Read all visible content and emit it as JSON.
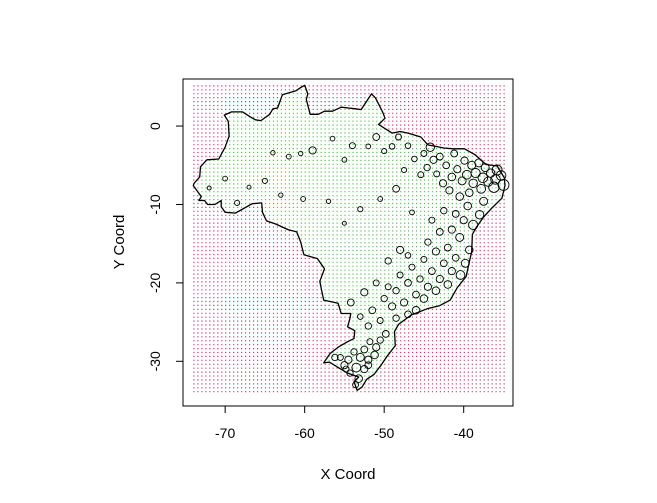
{
  "chart_data": {
    "type": "scatter",
    "title": "",
    "xlabel": "X Coord",
    "ylabel": "Y Coord",
    "xlim": [
      -75.3,
      -33.8
    ],
    "ylim": [
      -35.7,
      6.0
    ],
    "x_ticks": [
      -70,
      -60,
      -50,
      -40
    ],
    "y_ticks": [
      0,
      -10,
      -20,
      -30
    ],
    "x_tick_labels": [
      "-70",
      "-60",
      "-50",
      "-40"
    ],
    "y_tick_labels": [
      "0",
      "-10",
      "-20",
      "-30"
    ],
    "grid": false,
    "legend": "none",
    "colors": {
      "inside_grid": "#5cbf5c",
      "outside_grid": "#cc3d66",
      "boundary": "#000000",
      "points": "#000000"
    },
    "prediction_grid": {
      "x_range": [
        -74.0,
        -35.0
      ],
      "y_range": [
        -33.8,
        5.3
      ],
      "step": 0.5
    },
    "boundary": {
      "name": "Brazil",
      "lonlat": [
        [
          -73.9,
          -7.3
        ],
        [
          -73.2,
          -6.5
        ],
        [
          -73.1,
          -5.2
        ],
        [
          -72.3,
          -4.3
        ],
        [
          -70.8,
          -4.2
        ],
        [
          -70.0,
          -2.7
        ],
        [
          -69.5,
          -1.3
        ],
        [
          -69.6,
          0.6
        ],
        [
          -70.1,
          1.4
        ],
        [
          -69.2,
          1.8
        ],
        [
          -67.8,
          1.8
        ],
        [
          -66.9,
          1.2
        ],
        [
          -66.2,
          0.8
        ],
        [
          -65.5,
          0.7
        ],
        [
          -64.4,
          1.5
        ],
        [
          -64.0,
          2.2
        ],
        [
          -63.4,
          2.3
        ],
        [
          -62.8,
          4.0
        ],
        [
          -61.1,
          4.5
        ],
        [
          -60.5,
          4.9
        ],
        [
          -60.0,
          5.2
        ],
        [
          -59.6,
          4.1
        ],
        [
          -59.8,
          3.4
        ],
        [
          -59.3,
          1.5
        ],
        [
          -58.3,
          1.5
        ],
        [
          -57.5,
          1.9
        ],
        [
          -56.5,
          1.9
        ],
        [
          -55.4,
          2.4
        ],
        [
          -54.5,
          2.3
        ],
        [
          -53.6,
          2.2
        ],
        [
          -52.9,
          2.1
        ],
        [
          -51.6,
          4.1
        ],
        [
          -51.1,
          3.6
        ],
        [
          -50.2,
          1.8
        ],
        [
          -49.9,
          1.0
        ],
        [
          -50.7,
          0.2
        ],
        [
          -49.0,
          -0.9
        ],
        [
          -48.0,
          -0.7
        ],
        [
          -47.0,
          -0.9
        ],
        [
          -45.4,
          -1.4
        ],
        [
          -44.5,
          -2.4
        ],
        [
          -42.5,
          -2.8
        ],
        [
          -41.3,
          -2.9
        ],
        [
          -39.9,
          -2.9
        ],
        [
          -38.5,
          -3.7
        ],
        [
          -37.2,
          -4.9
        ],
        [
          -35.8,
          -5.1
        ],
        [
          -34.9,
          -6.6
        ],
        [
          -34.8,
          -7.6
        ],
        [
          -35.2,
          -9.2
        ],
        [
          -36.4,
          -10.4
        ],
        [
          -37.5,
          -11.6
        ],
        [
          -38.4,
          -12.9
        ],
        [
          -38.9,
          -13.8
        ],
        [
          -39.0,
          -16.0
        ],
        [
          -39.4,
          -17.8
        ],
        [
          -39.7,
          -19.2
        ],
        [
          -40.8,
          -20.6
        ],
        [
          -41.7,
          -22.2
        ],
        [
          -43.0,
          -22.9
        ],
        [
          -44.6,
          -23.3
        ],
        [
          -46.6,
          -24.1
        ],
        [
          -48.2,
          -25.3
        ],
        [
          -48.7,
          -26.2
        ],
        [
          -48.6,
          -28.0
        ],
        [
          -49.6,
          -29.3
        ],
        [
          -50.4,
          -30.5
        ],
        [
          -51.3,
          -31.7
        ],
        [
          -52.2,
          -32.3
        ],
        [
          -52.8,
          -33.3
        ],
        [
          -53.4,
          -33.7
        ],
        [
          -53.8,
          -32.6
        ],
        [
          -53.2,
          -32.0
        ],
        [
          -54.6,
          -31.5
        ],
        [
          -55.6,
          -30.9
        ],
        [
          -56.9,
          -30.1
        ],
        [
          -57.6,
          -30.2
        ],
        [
          -56.8,
          -29.0
        ],
        [
          -55.8,
          -28.2
        ],
        [
          -54.6,
          -27.5
        ],
        [
          -53.8,
          -27.1
        ],
        [
          -53.7,
          -26.1
        ],
        [
          -54.6,
          -25.6
        ],
        [
          -54.3,
          -24.5
        ],
        [
          -54.2,
          -23.9
        ],
        [
          -55.4,
          -23.9
        ],
        [
          -55.8,
          -22.6
        ],
        [
          -57.6,
          -22.2
        ],
        [
          -57.9,
          -20.8
        ],
        [
          -58.1,
          -19.8
        ],
        [
          -57.5,
          -18.2
        ],
        [
          -58.4,
          -16.9
        ],
        [
          -60.1,
          -16.4
        ],
        [
          -60.5,
          -14.8
        ],
        [
          -61.0,
          -13.5
        ],
        [
          -62.1,
          -13.2
        ],
        [
          -63.6,
          -12.5
        ],
        [
          -64.8,
          -12.1
        ],
        [
          -65.3,
          -11.0
        ],
        [
          -65.4,
          -9.8
        ],
        [
          -66.6,
          -9.9
        ],
        [
          -68.0,
          -10.7
        ],
        [
          -68.7,
          -11.1
        ],
        [
          -70.0,
          -11.0
        ],
        [
          -70.5,
          -10.3
        ],
        [
          -70.5,
          -9.5
        ],
        [
          -71.3,
          -10.0
        ],
        [
          -72.2,
          -10.0
        ],
        [
          -72.6,
          -9.5
        ],
        [
          -73.3,
          -9.5
        ],
        [
          -73.0,
          -9.0
        ],
        [
          -74.0,
          -7.6
        ]
      ]
    },
    "points": [
      [
        -35.0,
        -7.5,
        5.5
      ],
      [
        -35.3,
        -6.3,
        4.8
      ],
      [
        -35.8,
        -5.6,
        5.0
      ],
      [
        -36.0,
        -6.8,
        4.8
      ],
      [
        -36.2,
        -7.8,
        5.2
      ],
      [
        -36.6,
        -6.0,
        4.2
      ],
      [
        -36.9,
        -7.1,
        4.6
      ],
      [
        -37.3,
        -5.3,
        4.0
      ],
      [
        -37.6,
        -6.6,
        4.8
      ],
      [
        -37.8,
        -8.0,
        4.4
      ],
      [
        -38.1,
        -4.7,
        4.0
      ],
      [
        -38.5,
        -6.0,
        4.6
      ],
      [
        -38.8,
        -7.3,
        4.2
      ],
      [
        -39.0,
        -5.0,
        4.0
      ],
      [
        -39.3,
        -8.5,
        3.8
      ],
      [
        -39.6,
        -6.2,
        4.4
      ],
      [
        -39.9,
        -4.4,
        3.6
      ],
      [
        -40.2,
        -7.0,
        4.0
      ],
      [
        -40.5,
        -9.0,
        3.8
      ],
      [
        -40.8,
        -5.5,
        3.6
      ],
      [
        -41.2,
        -3.5,
        3.4
      ],
      [
        -41.5,
        -6.5,
        3.8
      ],
      [
        -41.8,
        -8.2,
        3.6
      ],
      [
        -42.2,
        -5.0,
        3.4
      ],
      [
        -42.6,
        -7.3,
        3.6
      ],
      [
        -43.0,
        -3.9,
        3.4
      ],
      [
        -43.4,
        -6.1,
        3.0
      ],
      [
        -43.8,
        -4.3,
        3.6
      ],
      [
        -44.2,
        -2.7,
        4.2
      ],
      [
        -44.6,
        -5.3,
        3.2
      ],
      [
        -45.0,
        -3.5,
        3.0
      ],
      [
        -45.4,
        -6.2,
        3.0
      ],
      [
        -46.2,
        -4.2,
        2.8
      ],
      [
        -47.0,
        -2.5,
        2.8
      ],
      [
        -47.5,
        -5.6,
        2.6
      ],
      [
        -48.2,
        -1.4,
        3.0
      ],
      [
        -49.0,
        -2.6,
        2.8
      ],
      [
        -50.0,
        -3.2,
        2.6
      ],
      [
        -51.0,
        -1.4,
        3.4
      ],
      [
        -52.0,
        -2.6,
        2.4
      ],
      [
        -54.0,
        -2.5,
        3.0
      ],
      [
        -55.0,
        -4.3,
        2.4
      ],
      [
        -56.5,
        -1.6,
        2.4
      ],
      [
        -59.0,
        -3.1,
        3.6
      ],
      [
        -60.5,
        -3.5,
        2.2
      ],
      [
        -62.0,
        -3.9,
        2.4
      ],
      [
        -64.0,
        -3.4,
        2.2
      ],
      [
        -65.0,
        -7.0,
        2.6
      ],
      [
        -67.0,
        -7.8,
        2.0
      ],
      [
        -68.5,
        -9.8,
        2.6
      ],
      [
        -70.0,
        -6.7,
        2.4
      ],
      [
        -72.0,
        -7.9,
        2.0
      ],
      [
        -63.0,
        -8.8,
        2.2
      ],
      [
        -60.2,
        -9.3,
        2.4
      ],
      [
        -57.0,
        -9.6,
        2.2
      ],
      [
        -55.0,
        -12.4,
        2.0
      ],
      [
        -53.0,
        -10.6,
        2.6
      ],
      [
        -50.5,
        -9.3,
        2.4
      ],
      [
        -48.5,
        -8.0,
        3.4
      ],
      [
        -46.5,
        -11.0,
        2.4
      ],
      [
        -37.5,
        -9.6,
        4.0
      ],
      [
        -38.0,
        -11.3,
        4.2
      ],
      [
        -38.8,
        -12.6,
        4.6
      ],
      [
        -39.5,
        -10.2,
        3.8
      ],
      [
        -40.0,
        -12.0,
        3.6
      ],
      [
        -40.5,
        -14.2,
        4.0
      ],
      [
        -41.0,
        -11.2,
        3.4
      ],
      [
        -41.5,
        -13.2,
        3.6
      ],
      [
        -42.0,
        -15.5,
        3.4
      ],
      [
        -42.5,
        -10.8,
        3.2
      ],
      [
        -43.0,
        -13.5,
        3.4
      ],
      [
        -43.5,
        -16.0,
        3.6
      ],
      [
        -44.0,
        -12.0,
        3.0
      ],
      [
        -44.5,
        -14.8,
        3.2
      ],
      [
        -45.0,
        -17.0,
        3.0
      ],
      [
        -39.3,
        -15.8,
        3.8
      ],
      [
        -39.8,
        -17.5,
        4.0
      ],
      [
        -40.4,
        -19.0,
        4.4
      ],
      [
        -41.0,
        -16.8,
        3.4
      ],
      [
        -41.5,
        -18.5,
        3.6
      ],
      [
        -42.0,
        -20.2,
        3.8
      ],
      [
        -42.5,
        -17.5,
        3.4
      ],
      [
        -43.0,
        -19.5,
        3.6
      ],
      [
        -43.5,
        -21.0,
        3.8
      ],
      [
        -44.0,
        -18.5,
        3.4
      ],
      [
        -44.5,
        -20.5,
        3.6
      ],
      [
        -45.0,
        -22.0,
        3.8
      ],
      [
        -45.5,
        -19.5,
        3.2
      ],
      [
        -46.0,
        -21.5,
        3.4
      ],
      [
        -46.5,
        -18.0,
        3.0
      ],
      [
        -47.0,
        -20.0,
        3.4
      ],
      [
        -47.5,
        -22.5,
        3.6
      ],
      [
        -48.0,
        -19.0,
        3.0
      ],
      [
        -48.5,
        -21.0,
        3.2
      ],
      [
        -49.0,
        -23.0,
        3.6
      ],
      [
        -49.5,
        -20.5,
        3.0
      ],
      [
        -50.0,
        -22.0,
        3.2
      ],
      [
        -46.0,
        -23.5,
        3.8
      ],
      [
        -47.0,
        -24.0,
        3.4
      ],
      [
        -48.5,
        -24.5,
        3.2
      ],
      [
        -50.5,
        -24.8,
        3.0
      ],
      [
        -51.5,
        -23.5,
        3.4
      ],
      [
        -52.0,
        -25.5,
        3.2
      ],
      [
        -53.0,
        -24.3,
        2.8
      ],
      [
        -54.2,
        -22.5,
        3.4
      ],
      [
        -52.5,
        -21.2,
        3.6
      ],
      [
        -51.0,
        -20.0,
        3.0
      ],
      [
        -49.5,
        -17.2,
        3.2
      ],
      [
        -48.0,
        -15.8,
        3.6
      ],
      [
        -47.0,
        -16.5,
        2.8
      ],
      [
        -49.8,
        -26.5,
        3.4
      ],
      [
        -50.5,
        -27.3,
        3.2
      ],
      [
        -51.0,
        -28.2,
        3.6
      ],
      [
        -51.8,
        -27.5,
        3.0
      ],
      [
        -52.5,
        -28.5,
        3.4
      ],
      [
        -53.0,
        -29.5,
        4.0
      ],
      [
        -52.0,
        -29.8,
        3.6
      ],
      [
        -51.2,
        -29.2,
        3.8
      ],
      [
        -53.8,
        -28.8,
        3.2
      ],
      [
        -54.5,
        -29.8,
        3.6
      ],
      [
        -55.5,
        -29.5,
        3.0
      ],
      [
        -53.5,
        -30.8,
        4.4
      ],
      [
        -52.5,
        -31.0,
        3.6
      ],
      [
        -54.3,
        -31.5,
        3.2
      ],
      [
        -53.2,
        -32.2,
        3.8
      ],
      [
        -54.8,
        -31.0,
        3.0
      ],
      [
        -52.0,
        -30.5,
        3.4
      ],
      [
        -55.0,
        -30.5,
        3.6
      ],
      [
        -56.2,
        -29.5,
        3.2
      ],
      [
        -53.6,
        -33.0,
        3.0
      ]
    ]
  }
}
